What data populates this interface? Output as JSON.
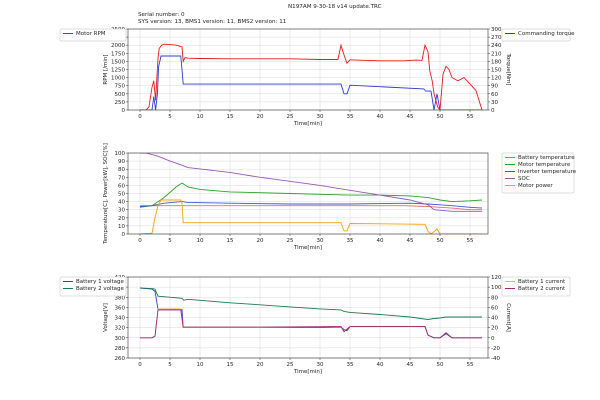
{
  "header": {
    "title": "N197AM 9-30-18 v14 update.TRC",
    "serial": "Serial number: 0",
    "versions": "SYS version: 13, BMS1 version: 11, BMS2 version: 11"
  },
  "chart_data": [
    {
      "type": "line",
      "xlabel": "Time[min]",
      "ylabel": "RPM [/min]",
      "ylabel_right": "Torque[Nm]",
      "xlim": [
        -2,
        58
      ],
      "ylim": [
        0,
        2500
      ],
      "ylim_right": [
        0,
        300
      ],
      "xticks": [
        0,
        5,
        10,
        15,
        20,
        25,
        30,
        35,
        40,
        45,
        50,
        55
      ],
      "yticks": [
        0,
        250,
        500,
        750,
        1000,
        1250,
        1500,
        1750,
        2000,
        2250,
        2500
      ],
      "yticks_right": [
        0,
        30,
        60,
        90,
        120,
        150,
        180,
        210,
        240,
        270,
        300
      ],
      "legend_left": [
        "Motor RPM"
      ],
      "legend_right": [
        "Commanding torque"
      ],
      "series": [
        {
          "name": "Motor RPM",
          "axis": "left",
          "color": "#e41a1c",
          "x": [
            0,
            1,
            1.5,
            2,
            2.3,
            2.6,
            3,
            3.2,
            3.6,
            4,
            5,
            6,
            7,
            7.2,
            7.5,
            8,
            10,
            15,
            20,
            25,
            30,
            33,
            33.5,
            34,
            34.5,
            35,
            36,
            40,
            44,
            46,
            47,
            47.5,
            48,
            48.3,
            48.7,
            49,
            49.3,
            49.6,
            50,
            50.5,
            51,
            51.5,
            52,
            53,
            54,
            55,
            56,
            57
          ],
          "y": [
            0,
            0,
            100,
            700,
            900,
            300,
            1600,
            1900,
            2000,
            2030,
            2020,
            2000,
            1950,
            1500,
            1620,
            1600,
            1590,
            1580,
            1580,
            1580,
            1560,
            1560,
            2000,
            1700,
            1440,
            1550,
            1540,
            1520,
            1520,
            1540,
            1530,
            2000,
            1800,
            1200,
            900,
            500,
            300,
            100,
            0,
            1100,
            1350,
            1250,
            1000,
            900,
            1000,
            800,
            600,
            0
          ]
        },
        {
          "name": "Commanding torque",
          "axis": "right",
          "color": "#2b3ccf",
          "x": [
            0,
            2,
            2.3,
            2.6,
            2.9,
            3.1,
            3.5,
            6.8,
            7.2,
            33.5,
            34,
            34.5,
            35,
            47.3,
            47.6,
            48.5,
            49,
            49.5,
            50,
            51,
            51.5,
            52,
            53,
            54,
            55,
            56,
            57
          ],
          "y": [
            0,
            0,
            50,
            0,
            60,
            160,
            200,
            200,
            96,
            96,
            60,
            60,
            92,
            78,
            70,
            70,
            0,
            60,
            0,
            0,
            0,
            0,
            0,
            0,
            0,
            0,
            0
          ]
        }
      ]
    },
    {
      "type": "line",
      "xlabel": "Time[min]",
      "ylabel": "Temperature[C], Power[kW], SOC[%]",
      "xlim": [
        -2,
        58
      ],
      "ylim": [
        0,
        100
      ],
      "xticks": [
        0,
        5,
        10,
        15,
        20,
        25,
        30,
        35,
        40,
        45,
        50,
        55
      ],
      "yticks": [
        0,
        10,
        20,
        30,
        40,
        50,
        60,
        70,
        80,
        90,
        100
      ],
      "legend": [
        "Battery temperature",
        "Motor temperature",
        "Inverter temperature",
        "SOC",
        "Motor power"
      ],
      "series": [
        {
          "name": "Battery temperature",
          "color": "#e56b6f",
          "x": [
            0,
            10,
            20,
            30,
            40,
            44,
            48,
            50,
            52,
            55,
            57
          ],
          "y": [
            35,
            35,
            35,
            35,
            35,
            35,
            34,
            33,
            32,
            30,
            30
          ]
        },
        {
          "name": "Motor temperature",
          "color": "#2ca02c",
          "x": [
            0,
            2,
            4,
            6,
            7,
            8,
            10,
            15,
            20,
            25,
            30,
            35,
            40,
            45,
            48,
            50,
            52,
            55,
            57
          ],
          "y": [
            33,
            35,
            45,
            58,
            63,
            58,
            55,
            52,
            51,
            50,
            49,
            48,
            48,
            47,
            45,
            42,
            40,
            41,
            42
          ]
        },
        {
          "name": "Inverter temperature",
          "color": "#3a57d6",
          "x": [
            0,
            2,
            4,
            7,
            8,
            15,
            25,
            35,
            45,
            48,
            50,
            52,
            55,
            57
          ],
          "y": [
            34,
            35,
            38,
            40,
            39,
            38,
            37,
            37,
            38,
            37,
            36,
            35,
            33,
            32
          ]
        },
        {
          "name": "SOC",
          "color": "#9b59b6",
          "x": [
            0,
            1,
            3,
            5,
            7,
            8,
            15,
            20,
            25,
            30,
            35,
            40,
            45,
            48,
            49,
            52,
            55,
            57
          ],
          "y": [
            100,
            100,
            96,
            90,
            85,
            82,
            76,
            70,
            65,
            60,
            54,
            48,
            42,
            36,
            30,
            28,
            28,
            28
          ]
        },
        {
          "name": "Motor power",
          "color": "#f0a30a",
          "x": [
            0,
            2,
            2.5,
            3,
            3.5,
            6.8,
            7,
            7.2,
            33.5,
            34,
            34.5,
            35,
            47.5,
            48,
            48.5,
            49.5,
            50,
            50.5,
            51,
            57
          ],
          "y": [
            0,
            1,
            20,
            35,
            42,
            42,
            38,
            14,
            14,
            4,
            4,
            13,
            12,
            3,
            0,
            6,
            0,
            0,
            0,
            0
          ]
        }
      ]
    },
    {
      "type": "line",
      "xlabel": "Time[min]",
      "ylabel": "Voltage[V]",
      "ylabel_right": "Current[A]",
      "xlim": [
        -2,
        58
      ],
      "ylim": [
        260,
        420
      ],
      "ylim_right": [
        -40,
        120
      ],
      "xticks": [
        0,
        5,
        10,
        15,
        20,
        25,
        30,
        35,
        40,
        45,
        50,
        55
      ],
      "yticks": [
        260,
        280,
        300,
        320,
        340,
        360,
        380,
        400,
        420
      ],
      "yticks_right": [
        -40,
        -20,
        0,
        20,
        40,
        60,
        80,
        100,
        120
      ],
      "legend_left": [
        "Battery 1 voltage",
        "Battery 2 voltage"
      ],
      "legend_right": [
        "Battery 1 current",
        "Battery 2 current"
      ],
      "series": [
        {
          "name": "Battery 1 voltage",
          "axis": "left",
          "color": "#2b3ccf",
          "x": [
            0,
            2,
            2.5,
            3,
            6.8,
            7,
            7.2,
            10,
            20,
            30,
            33.5,
            34,
            34.5,
            35,
            40,
            47.5,
            48,
            49,
            50,
            51,
            52,
            55,
            57
          ],
          "y": [
            398,
            396,
            392,
            356,
            356,
            356,
            320,
            320,
            320,
            320,
            321,
            316,
            314,
            322,
            322,
            322,
            305,
            300,
            300,
            310,
            300,
            300,
            300
          ]
        },
        {
          "name": "Battery 2 voltage",
          "axis": "left",
          "color": "#1f7a4f",
          "x": [
            0,
            2,
            2.5,
            3,
            7,
            7.3,
            8,
            15,
            20,
            25,
            30,
            33.5,
            34,
            35,
            40,
            45,
            48,
            49,
            50,
            51,
            52,
            55,
            57
          ],
          "y": [
            398,
            397,
            396,
            382,
            378,
            374,
            376,
            369,
            365,
            361,
            357,
            355,
            352,
            350,
            346,
            341,
            336,
            338,
            339,
            341,
            341,
            341,
            341
          ]
        },
        {
          "name": "Battery 1 current",
          "axis": "right",
          "color": "#f4a582",
          "x": [
            0,
            2,
            2.5,
            3,
            6.8,
            7.2,
            20,
            33.5,
            34,
            35,
            47.5,
            48,
            49,
            50,
            51,
            52,
            55,
            57
          ],
          "y": [
            0,
            0,
            3,
            57,
            57,
            20,
            20,
            22,
            13,
            22,
            22,
            5,
            0,
            0,
            8,
            0,
            0,
            0
          ]
        },
        {
          "name": "Battery 2 current",
          "axis": "right",
          "color": "#9c2a6d",
          "x": [
            0,
            2,
            2.5,
            3,
            6.8,
            7.2,
            20,
            33.5,
            34,
            35,
            47.5,
            48,
            49,
            50,
            51,
            52,
            55,
            57
          ],
          "y": [
            0,
            0,
            3,
            55,
            55,
            21,
            21,
            22,
            12,
            22,
            22,
            5,
            0,
            0,
            8,
            0,
            0,
            0
          ]
        }
      ]
    }
  ]
}
